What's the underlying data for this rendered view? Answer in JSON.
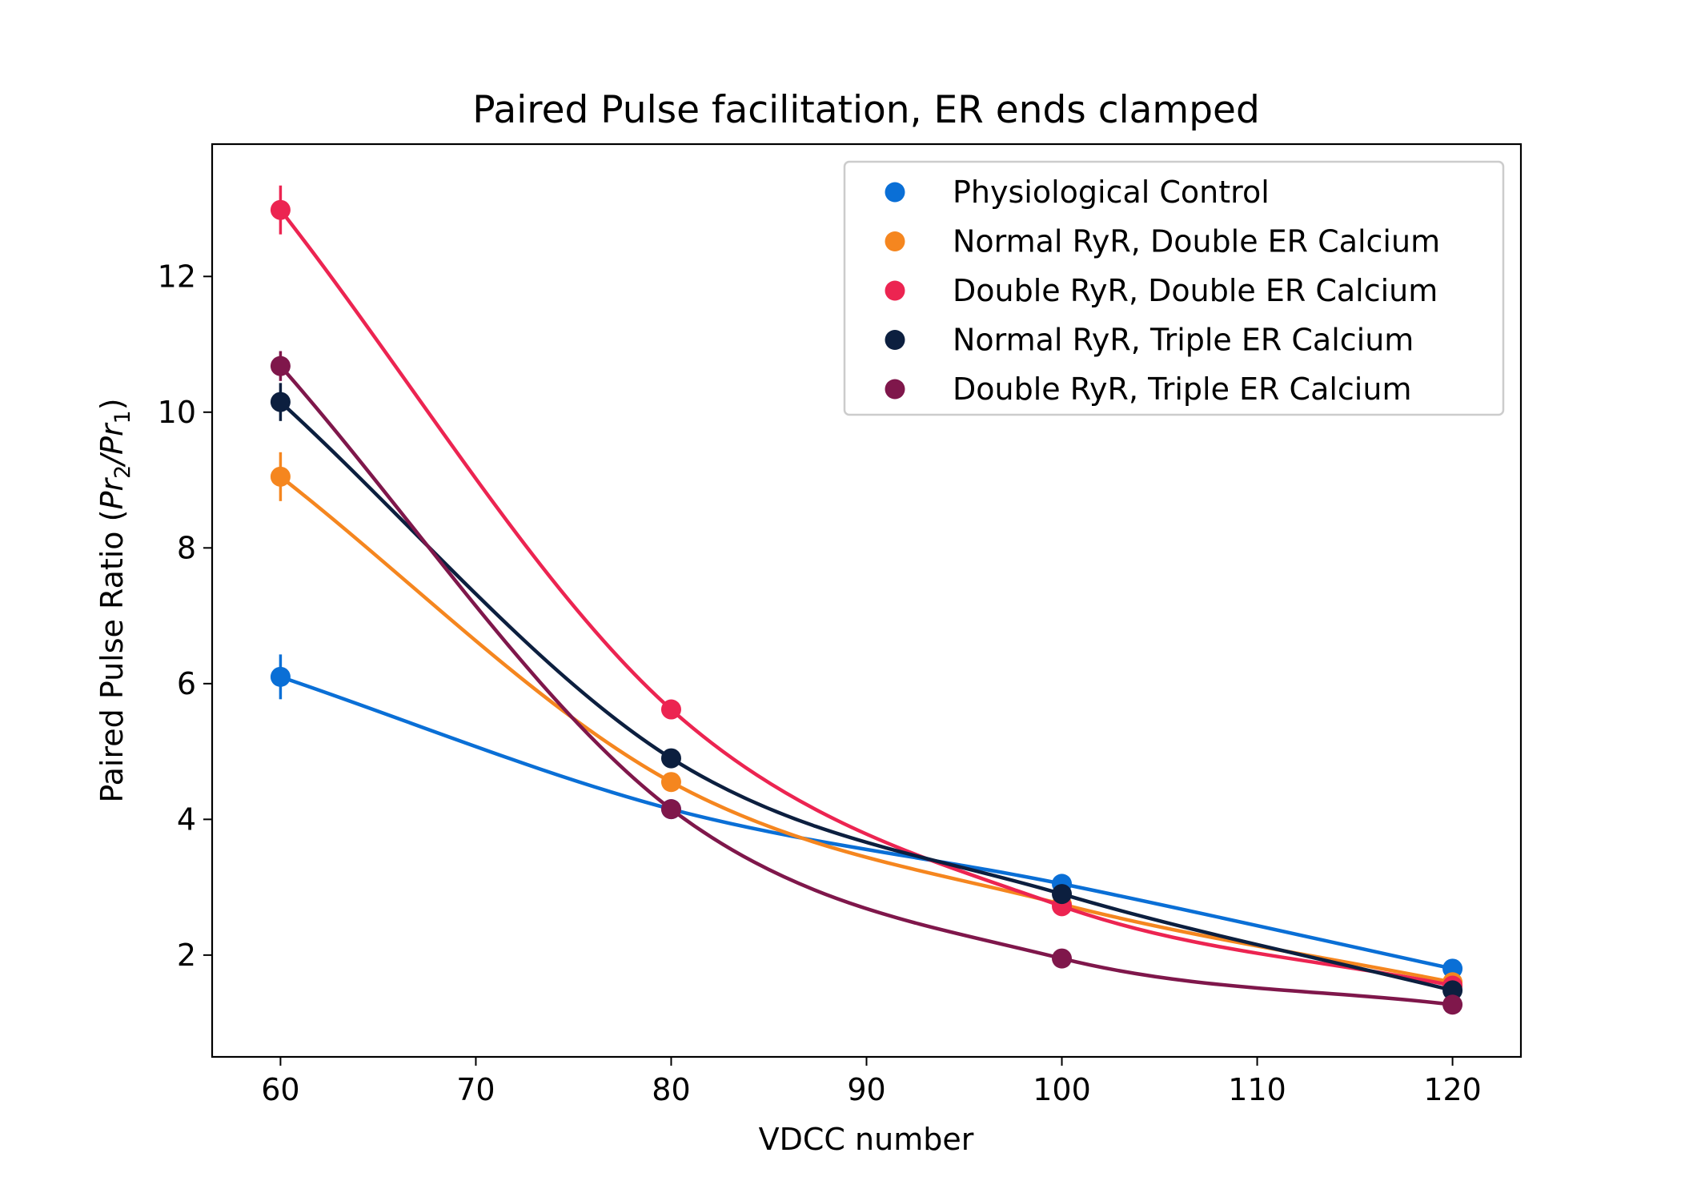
{
  "chart_data": {
    "type": "line",
    "title": "Paired Pulse facilitation, ER ends clamped",
    "xlabel": "VDCC number",
    "ylabel": "Paired Pulse Ratio (Pr₂/Pr₁)",
    "ylabel_parts": {
      "prefix": "Paired Pulse Ratio (",
      "num": "Pr",
      "num_sub": "2",
      "slash": "/",
      "den": "Pr",
      "den_sub": "1",
      "suffix": ")"
    },
    "xlim": [
      56.5,
      123.5
    ],
    "ylim": [
      0.5,
      13.95
    ],
    "xticks": [
      60,
      70,
      80,
      90,
      100,
      110,
      120
    ],
    "yticks": [
      2,
      4,
      6,
      8,
      10,
      12
    ],
    "x": [
      60,
      80,
      100,
      120
    ],
    "legend_position": "top-right",
    "grid": false,
    "series": [
      {
        "name": "Physiological Control",
        "color": "#0a6fd6",
        "values": [
          6.1,
          4.15,
          3.05,
          1.8
        ],
        "errors": [
          0.33,
          0.08,
          0.08,
          0.06
        ]
      },
      {
        "name": "Normal RyR, Double ER Calcium",
        "color": "#f5861f",
        "values": [
          9.05,
          4.55,
          2.75,
          1.6
        ],
        "errors": [
          0.36,
          0.1,
          0.08,
          0.06
        ]
      },
      {
        "name": "Double RyR, Double ER Calcium",
        "color": "#ec2451",
        "values": [
          12.98,
          5.62,
          2.72,
          1.55
        ],
        "errors": [
          0.36,
          0.1,
          0.08,
          0.06
        ]
      },
      {
        "name": "Normal RyR, Triple ER Calcium",
        "color": "#0c1f3f",
        "values": [
          10.15,
          4.9,
          2.9,
          1.48
        ],
        "errors": [
          0.28,
          0.1,
          0.08,
          0.06
        ]
      },
      {
        "name": "Double RyR, Triple ER Calcium",
        "color": "#7f174b",
        "values": [
          10.68,
          4.15,
          1.95,
          1.27
        ],
        "errors": [
          0.22,
          0.08,
          0.06,
          0.06
        ]
      }
    ]
  }
}
